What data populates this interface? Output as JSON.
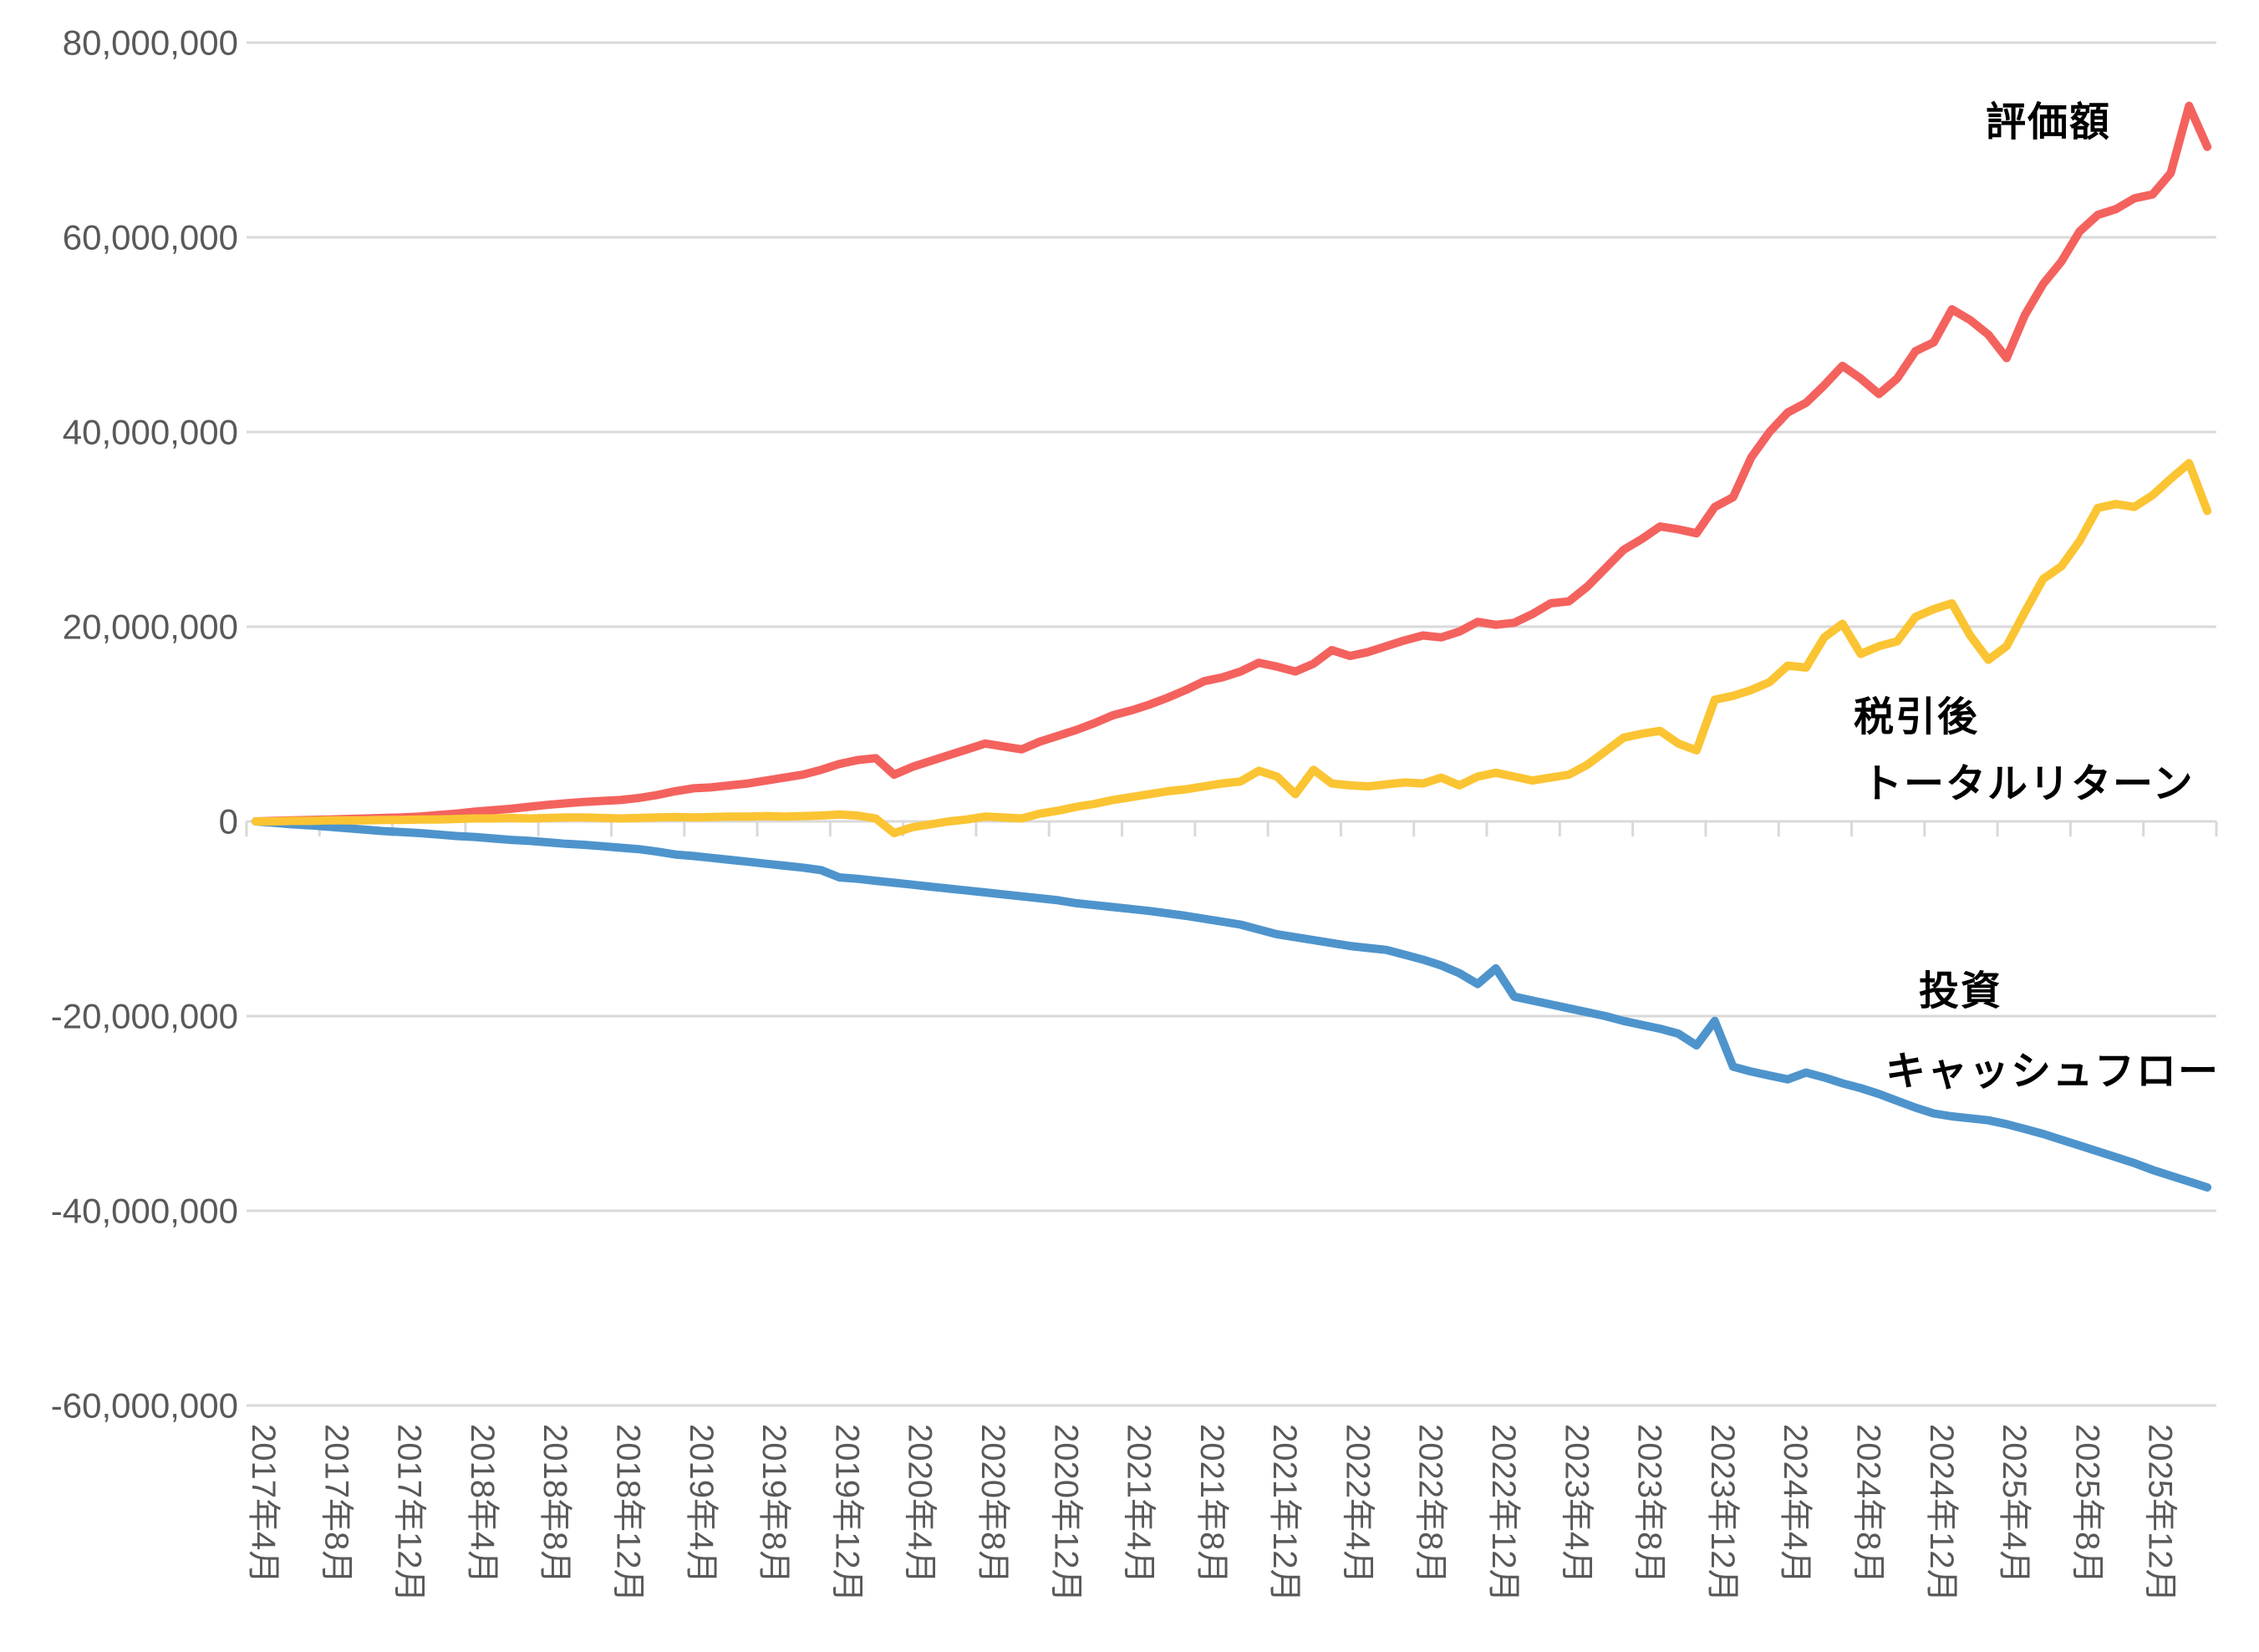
{
  "chart_data": {
    "type": "line",
    "title": "",
    "grid": "horizontal",
    "legend_position": "labels-inside-plot",
    "values_unit": "million JPY",
    "x": {
      "interval": "monthly",
      "start": "2017-04",
      "end": "2026-03",
      "tick_every_months": 4,
      "tick_labels": [
        "2017年4月",
        "2017年8月",
        "2017年12月",
        "2018年4月",
        "2018年8月",
        "2018年12月",
        "2019年4月",
        "2019年8月",
        "2019年12月",
        "2020年4月",
        "2020年8月",
        "2020年12月",
        "2021年4月",
        "2021年8月",
        "2021年12月",
        "2022年4月",
        "2022年8月",
        "2022年12月",
        "2023年4月",
        "2023年8月",
        "2023年12月",
        "2024年4月",
        "2024年8月",
        "2024年12月",
        "2025年4月",
        "2025年8月",
        "2025年12月"
      ]
    },
    "y": {
      "min": -60000000,
      "max": 80000000,
      "gridline_step": 20000000,
      "tick_labels": [
        "80,000,000",
        "60,000,000",
        "40,000,000",
        "20,000,000",
        "0",
        "-20,000,000",
        "-40,000,000",
        "-60,000,000"
      ],
      "tick_values_million": [
        80,
        60,
        40,
        20,
        0,
        -20,
        -40,
        -60
      ]
    },
    "series": [
      {
        "name": "評価額",
        "key": "valuation",
        "color": "#F4625E",
        "label_lines": [
          "評価額"
        ],
        "values": [
          0,
          0.05,
          0.1,
          0.15,
          0.2,
          0.25,
          0.3,
          0.35,
          0.4,
          0.5,
          0.65,
          0.8,
          1.0,
          1.15,
          1.3,
          1.5,
          1.7,
          1.85,
          2.0,
          2.1,
          2.2,
          2.4,
          2.7,
          3.1,
          3.4,
          3.5,
          3.7,
          3.9,
          4.2,
          4.5,
          4.8,
          5.3,
          5.9,
          6.3,
          6.5,
          4.8,
          5.6,
          6.2,
          6.8,
          7.4,
          8.0,
          7.7,
          7.4,
          8.2,
          8.8,
          9.4,
          10.1,
          10.9,
          11.4,
          12.0,
          12.7,
          13.5,
          14.4,
          14.8,
          15.4,
          16.3,
          15.9,
          15.4,
          16.2,
          17.6,
          17.0,
          17.4,
          18.0,
          18.6,
          19.1,
          18.9,
          19.5,
          20.5,
          20.2,
          20.4,
          21.3,
          22.4,
          22.6,
          24.1,
          26.0,
          27.9,
          29.0,
          30.3,
          30.0,
          29.6,
          32.3,
          33.3,
          37.4,
          40.0,
          42.0,
          43.0,
          44.8,
          46.8,
          45.5,
          43.9,
          45.5,
          48.3,
          49.2,
          52.6,
          51.5,
          50.0,
          47.6,
          52.0,
          55.2,
          57.5,
          60.6,
          62.3,
          62.9,
          64.0,
          64.4,
          66.6,
          73.5,
          69.3
        ]
      },
      {
        "name": "税引後トータルリターン",
        "key": "after-tax-total-return",
        "color": "#FBC433",
        "label_lines": [
          "税引後",
          "トータルリターン"
        ],
        "values": [
          0,
          0,
          0.05,
          0.05,
          0.1,
          0.1,
          0.1,
          0.15,
          0.15,
          0.2,
          0.2,
          0.25,
          0.3,
          0.3,
          0.35,
          0.3,
          0.35,
          0.4,
          0.4,
          0.35,
          0.3,
          0.35,
          0.4,
          0.45,
          0.4,
          0.45,
          0.5,
          0.5,
          0.55,
          0.5,
          0.55,
          0.6,
          0.7,
          0.6,
          0.3,
          -1.2,
          -0.6,
          -0.3,
          0.0,
          0.2,
          0.5,
          0.4,
          0.3,
          0.8,
          1.1,
          1.5,
          1.8,
          2.2,
          2.5,
          2.8,
          3.1,
          3.3,
          3.6,
          3.9,
          4.1,
          5.2,
          4.6,
          2.8,
          5.3,
          3.9,
          3.7,
          3.6,
          3.8,
          4.0,
          3.9,
          4.5,
          3.7,
          4.6,
          5.0,
          4.6,
          4.2,
          4.5,
          4.8,
          5.8,
          7.2,
          8.6,
          9.0,
          9.3,
          8.0,
          7.3,
          12.5,
          12.9,
          13.5,
          14.3,
          16.0,
          15.8,
          18.9,
          20.3,
          17.2,
          18.0,
          18.5,
          21.0,
          21.8,
          22.4,
          19.1,
          16.6,
          18.0,
          21.5,
          24.9,
          26.2,
          28.8,
          32.2,
          32.6,
          32.3,
          33.5,
          35.2,
          36.8,
          31.9
        ]
      },
      {
        "name": "投資キャッシュフロー",
        "key": "investment-cash-flow",
        "color": "#4E94CC",
        "label_lines": [
          "投資",
          "キャッシュフロー"
        ],
        "values": [
          0,
          -0.15,
          -0.3,
          -0.4,
          -0.55,
          -0.7,
          -0.85,
          -1.0,
          -1.1,
          -1.2,
          -1.35,
          -1.5,
          -1.6,
          -1.75,
          -1.9,
          -2.0,
          -2.15,
          -2.3,
          -2.4,
          -2.55,
          -2.7,
          -2.85,
          -3.1,
          -3.4,
          -3.55,
          -3.75,
          -3.95,
          -4.15,
          -4.35,
          -4.55,
          -4.75,
          -5.0,
          -5.75,
          -5.9,
          -6.1,
          -6.3,
          -6.5,
          -6.7,
          -6.9,
          -7.1,
          -7.3,
          -7.5,
          -7.7,
          -7.9,
          -8.1,
          -8.4,
          -8.6,
          -8.8,
          -9.0,
          -9.2,
          -9.45,
          -9.7,
          -10.0,
          -10.3,
          -10.6,
          -11.1,
          -11.6,
          -11.9,
          -12.2,
          -12.5,
          -12.8,
          -13.0,
          -13.2,
          -13.7,
          -14.2,
          -14.8,
          -15.6,
          -16.7,
          -15.1,
          -18.0,
          -18.4,
          -18.8,
          -19.2,
          -19.6,
          -20.0,
          -20.5,
          -20.9,
          -21.3,
          -21.8,
          -23.0,
          -20.5,
          -25.2,
          -25.7,
          -26.1,
          -26.5,
          -25.8,
          -26.3,
          -26.9,
          -27.4,
          -28.0,
          -28.7,
          -29.4,
          -30.0,
          -30.3,
          -30.5,
          -30.7,
          -31.1,
          -31.6,
          -32.1,
          -32.7,
          -33.3,
          -33.9,
          -34.5,
          -35.1,
          -35.8,
          -36.4,
          -37.0,
          -37.6
        ]
      }
    ],
    "colors": {
      "background": "#FFFFFF",
      "gridline": "#D9D9D9",
      "axis_line": "#D9D9D9",
      "axis_text": "#595959",
      "series_label_text": "#000000"
    }
  }
}
